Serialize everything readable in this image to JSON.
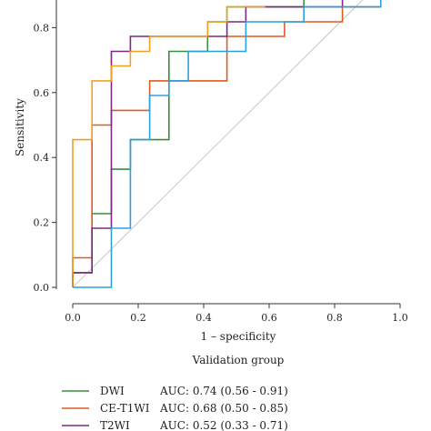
{
  "chart_data": {
    "type": "line",
    "title": "",
    "subtitle": "Validation group",
    "xlabel": "1 – specificity",
    "ylabel": "Sensitivity",
    "xlim": [
      -0.05,
      1.05
    ],
    "ylim": [
      0,
      0.95
    ],
    "xticks": [
      "0.0",
      "0.2",
      "0.4",
      "0.6",
      "0.8",
      "1.0"
    ],
    "yticks": [
      "0.0",
      "0.2",
      "0.4",
      "0.6",
      "0.8"
    ],
    "grid": false,
    "reference_line": true,
    "legend_position": "bottom",
    "series": [
      {
        "name": "DWI",
        "auc": "AUC: 0.74 (0.56 - 0.91)",
        "color": "#3a8f3a",
        "x": [
          0,
          0,
          0.059,
          0.059,
          0.118,
          0.118,
          0.176,
          0.176,
          0.294,
          0.294,
          0.412,
          0.412,
          0.471,
          0.471,
          0.706,
          0.706,
          0.882
        ],
        "y": [
          0,
          0.045,
          0.045,
          0.227,
          0.227,
          0.364,
          0.364,
          0.455,
          0.455,
          0.727,
          0.727,
          0.818,
          0.818,
          0.864,
          0.864,
          0.909,
          0.909
        ]
      },
      {
        "name": "CE-T1WI",
        "auc": "AUC: 0.68 (0.50 - 0.85)",
        "color": "#e05a1f",
        "x": [
          0,
          0,
          0.059,
          0.059,
          0.118,
          0.118,
          0.235,
          0.235,
          0.353,
          0.353,
          0.471,
          0.471,
          0.647,
          0.647,
          0.824,
          0.824,
          0.941
        ],
        "y": [
          0,
          0.091,
          0.091,
          0.5,
          0.5,
          0.545,
          0.545,
          0.636,
          0.636,
          0.636,
          0.636,
          0.773,
          0.773,
          0.818,
          0.818,
          0.864,
          0.864
        ]
      },
      {
        "name": "T2WI",
        "auc": "AUC: 0.52 (0.33 - 0.71)",
        "color": "#7a2a7f",
        "x": [
          0,
          0,
          0.059,
          0.059,
          0.118,
          0.118,
          0.176,
          0.176,
          0.235,
          0.235,
          0.294,
          0.294,
          0.412,
          0.412,
          0.471,
          0.471,
          0.529,
          0.529,
          0.647,
          0.647,
          0.824,
          0.824,
          0.941,
          0.941
        ],
        "y": [
          0,
          0.045,
          0.045,
          0.182,
          0.182,
          0.727,
          0.727,
          0.773,
          0.773,
          0.773,
          0.773,
          0.773,
          0.773,
          0.773,
          0.773,
          0.818,
          0.818,
          0.864,
          0.864,
          0.864,
          0.864,
          0.909,
          0.909,
          0.955
        ]
      },
      {
        "name": "",
        "color": "#f0a020",
        "x": [
          0,
          0,
          0.059,
          0.059,
          0.118,
          0.118,
          0.176,
          0.176,
          0.235,
          0.235,
          0.412,
          0.412,
          0.471,
          0.471,
          0.588
        ],
        "y": [
          0,
          0.455,
          0.455,
          0.636,
          0.636,
          0.682,
          0.682,
          0.727,
          0.727,
          0.773,
          0.773,
          0.818,
          0.818,
          0.864,
          0.864
        ]
      },
      {
        "name": "",
        "color": "#2aa0e0",
        "x": [
          0,
          0.118,
          0.118,
          0.176,
          0.176,
          0.235,
          0.235,
          0.294,
          0.294,
          0.353,
          0.353,
          0.529,
          0.529,
          0.706,
          0.706,
          0.941,
          0.941
        ],
        "y": [
          0,
          0,
          0.182,
          0.182,
          0.455,
          0.455,
          0.591,
          0.591,
          0.636,
          0.636,
          0.727,
          0.727,
          0.818,
          0.818,
          0.864,
          0.864,
          0.909
        ]
      }
    ]
  }
}
